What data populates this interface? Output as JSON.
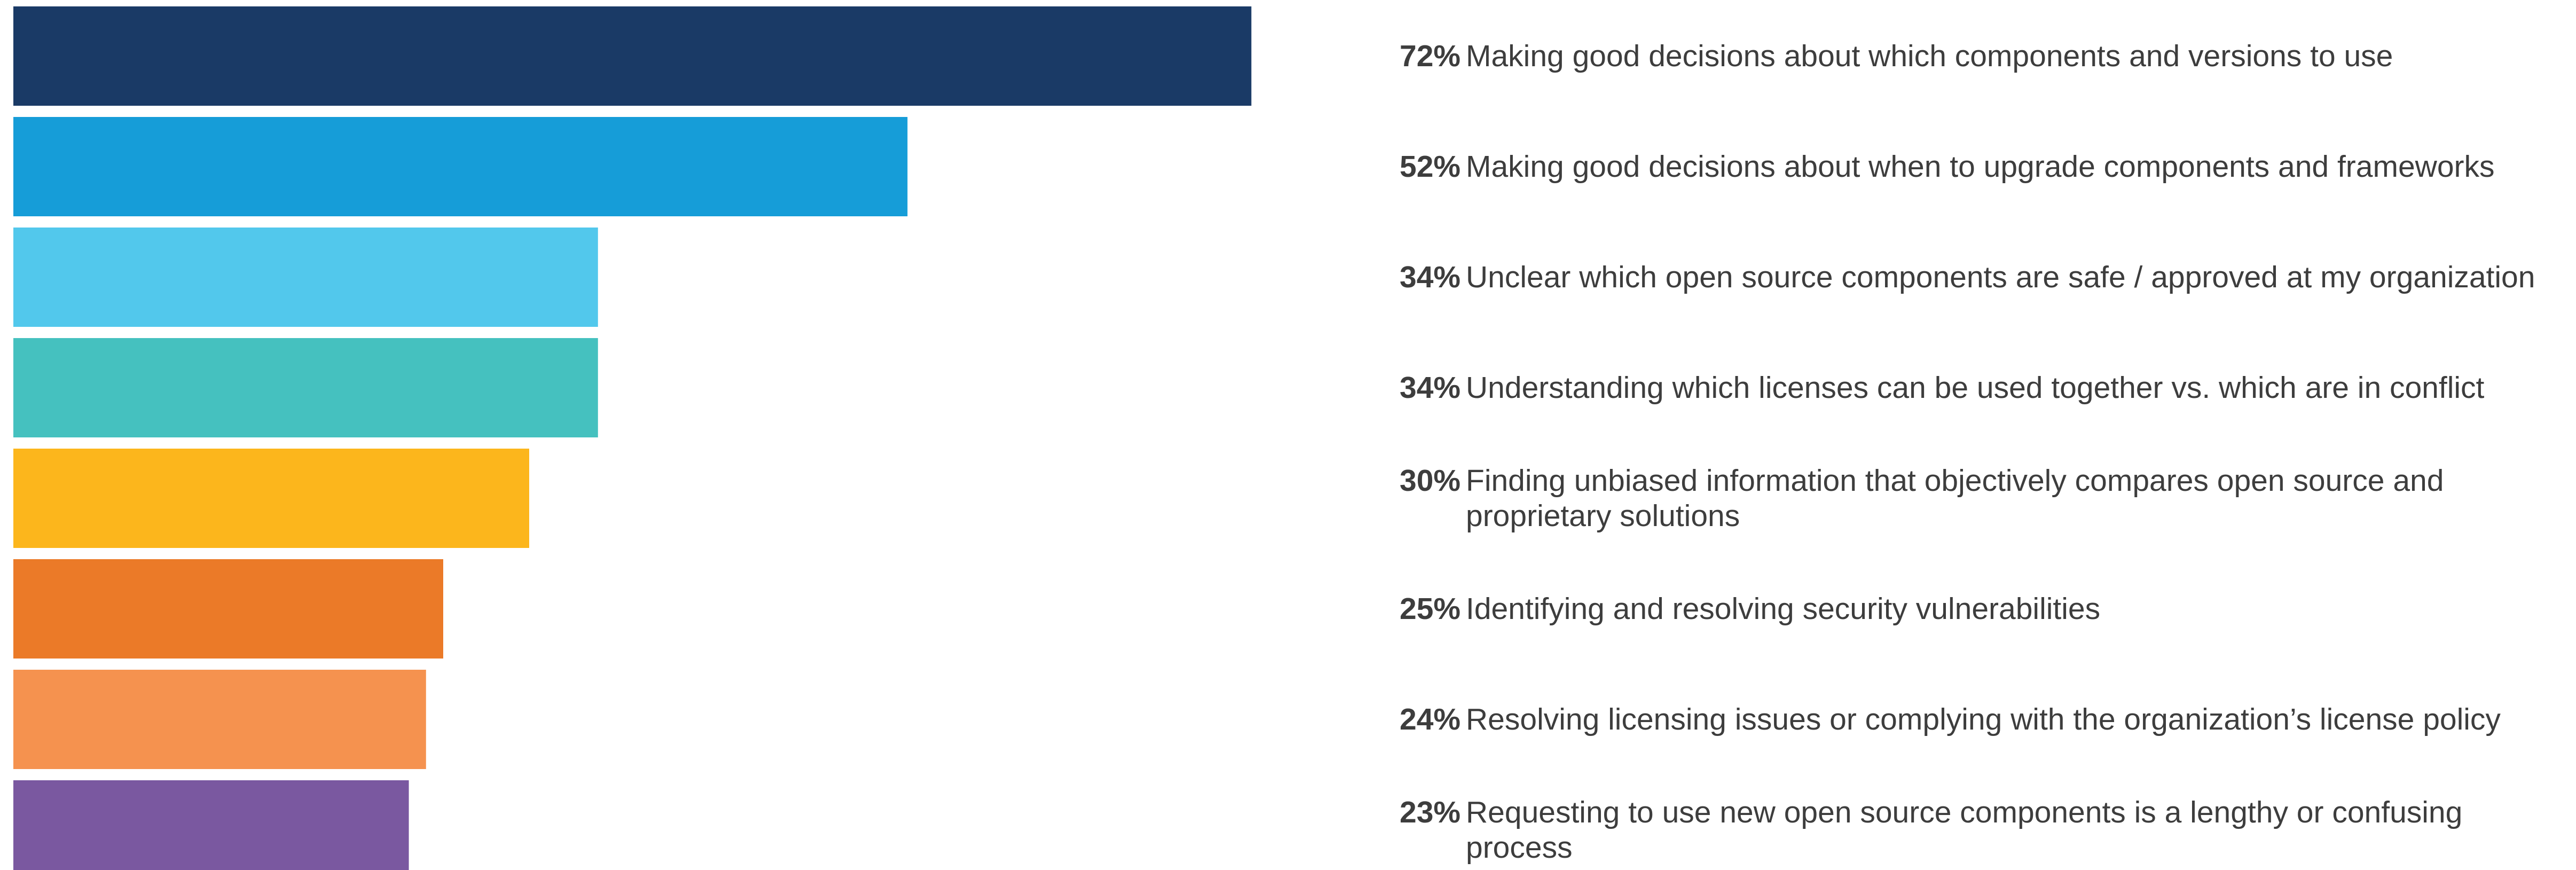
{
  "chart_data": {
    "type": "bar",
    "orientation": "horizontal",
    "categories": [
      "Making good decisions about which components and versions to use",
      "Making good decisions about when to upgrade components and frameworks",
      "Unclear which open source components are safe / approved at my organization",
      "Understanding which licenses can be used together vs. which are in conflict",
      "Finding unbiased information that objectively compares open source and proprietary solutions",
      "Identifying and resolving security vulnerabilities",
      "Resolving licensing issues or complying with the organization’s license policy",
      "Requesting to use new open source components is a lengthy or confusing process"
    ],
    "values": [
      72,
      52,
      34,
      34,
      30,
      25,
      24,
      23
    ],
    "value_labels": [
      "72%",
      "52%",
      "34%",
      "34%",
      "30%",
      "25%",
      "24%",
      "23%"
    ],
    "colors": [
      "#1a3a66",
      "#169dd8",
      "#52c8ec",
      "#45c1bf",
      "#fcb61c",
      "#eb7a28",
      "#f5924f",
      "#7a58a0"
    ]
  }
}
